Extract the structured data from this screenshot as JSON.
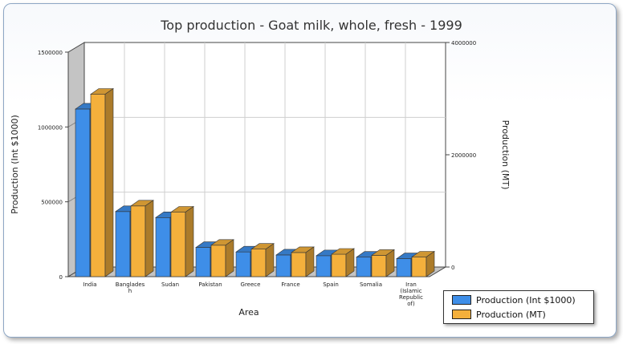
{
  "chart_data": {
    "type": "bar",
    "title": "Top production - Goat milk, whole, fresh - 1999",
    "xlabel": "Area",
    "ylabel_left": "Production (Int $1000)",
    "ylabel_right": "Production (MT)",
    "categories": [
      "India",
      "Bangladesh",
      "Sudan",
      "Pakistan",
      "Greece",
      "France",
      "Spain",
      "Somalia",
      "Iran (Islamic Republic of)"
    ],
    "category_labels": [
      [
        "India"
      ],
      [
        "Banglades",
        "h"
      ],
      [
        "Sudan"
      ],
      [
        "Pakistan"
      ],
      [
        "Greece"
      ],
      [
        "France"
      ],
      [
        "Spain"
      ],
      [
        "Somalia"
      ],
      [
        "Iran",
        "(Islamic",
        "Republic",
        "of)"
      ]
    ],
    "ylim_left": [
      0,
      1500000
    ],
    "yticks_left": [
      "0",
      "500000",
      "1000000",
      "1500000"
    ],
    "ylim_right": [
      0,
      4000000
    ],
    "yticks_right": [
      "0",
      "2000000",
      "4000000"
    ],
    "series": [
      {
        "name": "Production (Int $1000)",
        "axis": "left",
        "color": "#3e8ee8",
        "values": [
          1120000,
          435000,
          395000,
          195000,
          165000,
          145000,
          140000,
          130000,
          120000
        ]
      },
      {
        "name": "Production (MT)",
        "axis": "right",
        "color": "#f4b03c",
        "values": [
          3250000,
          1260000,
          1150000,
          560000,
          490000,
          430000,
          400000,
          380000,
          350000
        ]
      }
    ],
    "grid": true,
    "legend": "bottom-right"
  }
}
